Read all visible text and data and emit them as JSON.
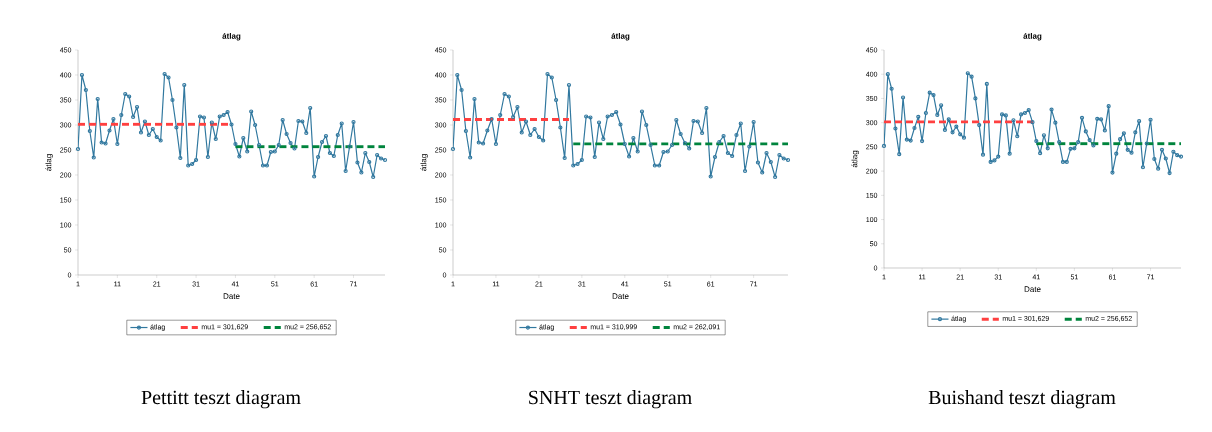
{
  "chart_data": [
    {
      "type": "line",
      "title": "átlag",
      "xlabel": "Date",
      "ylabel": "átlag",
      "xlim": [
        1,
        79
      ],
      "ylim": [
        0,
        450
      ],
      "xticks": [
        1,
        11,
        21,
        31,
        41,
        51,
        61,
        71
      ],
      "yticks": [
        0,
        50,
        100,
        150,
        200,
        250,
        300,
        350,
        400,
        450
      ],
      "legend": "bottom",
      "marker": "circle",
      "line_style": "solid",
      "annotations": [
        "Pettitt teszt diagram"
      ],
      "x": [
        1,
        2,
        3,
        4,
        5,
        6,
        7,
        8,
        9,
        10,
        11,
        12,
        13,
        14,
        15,
        16,
        17,
        18,
        19,
        20,
        21,
        22,
        23,
        24,
        25,
        26,
        27,
        28,
        29,
        30,
        31,
        32,
        33,
        34,
        35,
        36,
        37,
        38,
        39,
        40,
        41,
        42,
        43,
        44,
        45,
        46,
        47,
        48,
        49,
        50,
        51,
        52,
        53,
        54,
        55,
        56,
        57,
        58,
        59,
        60,
        61,
        62,
        63,
        64,
        65,
        66,
        67,
        68,
        69,
        70,
        71,
        72,
        73,
        74,
        75,
        76,
        77,
        78,
        79
      ],
      "series": [
        {
          "name": "átlag",
          "color": "#31789f",
          "values": [
            252,
            400,
            370,
            288,
            235,
            352,
            265,
            263,
            289,
            312,
            262,
            320,
            362,
            357,
            316,
            336,
            285,
            307,
            280,
            292,
            276,
            269,
            402,
            395,
            350,
            295,
            234,
            380,
            219,
            222,
            230,
            317,
            315,
            236,
            305,
            272,
            317,
            320,
            326,
            301,
            262,
            237,
            274,
            247,
            327,
            300,
            260,
            219,
            219,
            246,
            247,
            260,
            310,
            282,
            264,
            253,
            308,
            307,
            284,
            334,
            197,
            236,
            266,
            278,
            244,
            238,
            280,
            303,
            208,
            257,
            306,
            225,
            205,
            244,
            226,
            196,
            240,
            233,
            230
          ]
        },
        {
          "name": "mu1 = 301,629",
          "type": "line",
          "color": "#ff4040",
          "line_style": "dashed",
          "marker": "none",
          "x": [
            1,
            40
          ],
          "values": [
            301.629,
            301.629
          ]
        },
        {
          "name": "mu2 = 256,652",
          "type": "line",
          "color": "#00843d",
          "line_style": "dashed",
          "marker": "none",
          "x": [
            41,
            79
          ],
          "values": [
            256.652,
            256.652
          ]
        }
      ]
    },
    {
      "type": "line",
      "title": "átlag",
      "xlabel": "Date",
      "ylabel": "átlag",
      "xlim": [
        1,
        79
      ],
      "ylim": [
        0,
        450
      ],
      "xticks": [
        1,
        11,
        21,
        31,
        41,
        51,
        61,
        71
      ],
      "yticks": [
        0,
        50,
        100,
        150,
        200,
        250,
        300,
        350,
        400,
        450
      ],
      "legend": "bottom",
      "marker": "circle",
      "line_style": "solid",
      "annotations": [
        "SNHT teszt diagram"
      ],
      "x": [
        1,
        2,
        3,
        4,
        5,
        6,
        7,
        8,
        9,
        10,
        11,
        12,
        13,
        14,
        15,
        16,
        17,
        18,
        19,
        20,
        21,
        22,
        23,
        24,
        25,
        26,
        27,
        28,
        29,
        30,
        31,
        32,
        33,
        34,
        35,
        36,
        37,
        38,
        39,
        40,
        41,
        42,
        43,
        44,
        45,
        46,
        47,
        48,
        49,
        50,
        51,
        52,
        53,
        54,
        55,
        56,
        57,
        58,
        59,
        60,
        61,
        62,
        63,
        64,
        65,
        66,
        67,
        68,
        69,
        70,
        71,
        72,
        73,
        74,
        75,
        76,
        77,
        78,
        79
      ],
      "series": [
        {
          "name": "átlag",
          "color": "#31789f",
          "values": [
            252,
            400,
            370,
            288,
            235,
            352,
            265,
            263,
            289,
            312,
            262,
            320,
            362,
            357,
            316,
            336,
            285,
            307,
            280,
            292,
            276,
            269,
            402,
            395,
            350,
            295,
            234,
            380,
            219,
            222,
            230,
            317,
            315,
            236,
            305,
            272,
            317,
            320,
            326,
            301,
            262,
            237,
            274,
            247,
            327,
            300,
            260,
            219,
            219,
            246,
            247,
            260,
            310,
            282,
            264,
            253,
            308,
            307,
            284,
            334,
            197,
            236,
            266,
            278,
            244,
            238,
            280,
            303,
            208,
            257,
            306,
            225,
            205,
            244,
            226,
            196,
            240,
            233,
            230
          ]
        },
        {
          "name": "mu1 = 310,999",
          "type": "line",
          "color": "#ff4040",
          "line_style": "dashed",
          "marker": "none",
          "x": [
            1,
            28
          ],
          "values": [
            310.999,
            310.999
          ]
        },
        {
          "name": "mu2 = 262,091",
          "type": "line",
          "color": "#00843d",
          "line_style": "dashed",
          "marker": "none",
          "x": [
            29,
            79
          ],
          "values": [
            262.091,
            262.091
          ]
        }
      ]
    },
    {
      "type": "line",
      "title": "átlag",
      "xlabel": "Date",
      "ylabel": "átlag",
      "xlim": [
        1,
        79
      ],
      "ylim": [
        0,
        450
      ],
      "xticks": [
        1,
        11,
        21,
        31,
        41,
        51,
        61,
        71
      ],
      "yticks": [
        0,
        50,
        100,
        150,
        200,
        250,
        300,
        350,
        400,
        450
      ],
      "legend": "bottom",
      "marker": "circle",
      "line_style": "solid",
      "annotations": [
        "Buishand teszt diagram"
      ],
      "x": [
        1,
        2,
        3,
        4,
        5,
        6,
        7,
        8,
        9,
        10,
        11,
        12,
        13,
        14,
        15,
        16,
        17,
        18,
        19,
        20,
        21,
        22,
        23,
        24,
        25,
        26,
        27,
        28,
        29,
        30,
        31,
        32,
        33,
        34,
        35,
        36,
        37,
        38,
        39,
        40,
        41,
        42,
        43,
        44,
        45,
        46,
        47,
        48,
        49,
        50,
        51,
        52,
        53,
        54,
        55,
        56,
        57,
        58,
        59,
        60,
        61,
        62,
        63,
        64,
        65,
        66,
        67,
        68,
        69,
        70,
        71,
        72,
        73,
        74,
        75,
        76,
        77,
        78,
        79
      ],
      "series": [
        {
          "name": "átlag",
          "color": "#31789f",
          "values": [
            252,
            400,
            370,
            288,
            235,
            352,
            265,
            263,
            289,
            312,
            262,
            320,
            362,
            357,
            316,
            336,
            285,
            307,
            280,
            292,
            276,
            269,
            402,
            395,
            350,
            295,
            234,
            380,
            219,
            222,
            230,
            317,
            315,
            236,
            305,
            272,
            317,
            320,
            326,
            301,
            262,
            237,
            274,
            247,
            327,
            300,
            260,
            219,
            219,
            246,
            247,
            260,
            310,
            282,
            264,
            253,
            308,
            307,
            284,
            334,
            197,
            236,
            266,
            278,
            244,
            238,
            280,
            303,
            208,
            257,
            306,
            225,
            205,
            244,
            226,
            196,
            240,
            233,
            230
          ]
        },
        {
          "name": "mu1 = 301,629",
          "type": "line",
          "color": "#ff4040",
          "line_style": "dashed",
          "marker": "none",
          "x": [
            1,
            40
          ],
          "values": [
            301.629,
            301.629
          ]
        },
        {
          "name": "mu2 = 256,652",
          "type": "line",
          "color": "#00843d",
          "line_style": "dashed",
          "marker": "none",
          "x": [
            41,
            79
          ],
          "values": [
            256.652,
            256.652
          ]
        }
      ]
    }
  ]
}
